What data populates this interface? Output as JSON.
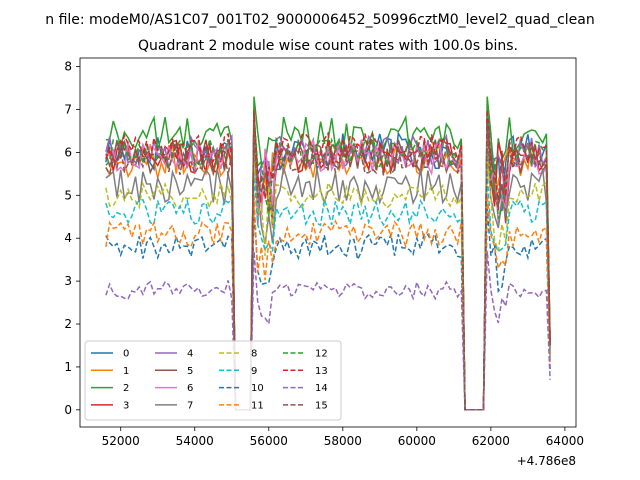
{
  "chart_data": {
    "type": "line",
    "suptitle": "n file: modeM0/AS1C07_001T02_9000006452_50996cztM0_level2_quad_clean",
    "title": "Quadrant 2 module wise count rates with 100.0s bins.",
    "xlabel": "",
    "ylabel": "",
    "x_offset_label": "+4.786e8",
    "x_range": [
      51600,
      63600
    ],
    "xlim": [
      50900,
      64300
    ],
    "ylim": [
      -0.4,
      8.2
    ],
    "xticks": [
      52000,
      54000,
      56000,
      58000,
      60000,
      62000,
      64000
    ],
    "xtick_labels": [
      "52000",
      "54000",
      "56000",
      "58000",
      "60000",
      "62000",
      "64000"
    ],
    "yticks": [
      0,
      1,
      2,
      3,
      4,
      5,
      6,
      7,
      8
    ],
    "ytick_labels": [
      "0",
      "1",
      "2",
      "3",
      "4",
      "5",
      "6",
      "7",
      "8"
    ],
    "bin_seconds": 100,
    "gaps": [
      [
        55000,
        55600
      ],
      [
        61200,
        61900
      ]
    ],
    "spikes_at": [
      55600,
      61900
    ],
    "legend": {
      "placement": "lower-left",
      "columns": 4
    },
    "series": [
      {
        "name": "0",
        "color": "#1f77b4",
        "style": "solid",
        "level": 6.0,
        "noise": 0.45
      },
      {
        "name": "1",
        "color": "#ff7f0e",
        "style": "solid",
        "level": 5.8,
        "noise": 0.4
      },
      {
        "name": "2",
        "color": "#2ca02c",
        "style": "solid",
        "level": 6.4,
        "noise": 0.45
      },
      {
        "name": "3",
        "color": "#d62728",
        "style": "solid",
        "level": 5.9,
        "noise": 0.4
      },
      {
        "name": "4",
        "color": "#9467bd",
        "style": "solid",
        "level": 6.0,
        "noise": 0.4
      },
      {
        "name": "5",
        "color": "#8c564b",
        "style": "solid",
        "level": 5.9,
        "noise": 0.4
      },
      {
        "name": "6",
        "color": "#e377c2",
        "style": "solid",
        "level": 5.9,
        "noise": 0.4
      },
      {
        "name": "7",
        "color": "#7f7f7f",
        "style": "solid",
        "level": 5.2,
        "noise": 0.45
      },
      {
        "name": "8",
        "color": "#bcbd22",
        "style": "dashed",
        "level": 5.0,
        "noise": 0.3
      },
      {
        "name": "9",
        "color": "#17becf",
        "style": "dashed",
        "level": 4.6,
        "noise": 0.3
      },
      {
        "name": "10",
        "color": "#1f77b4",
        "style": "dashed",
        "level": 3.8,
        "noise": 0.3
      },
      {
        "name": "11",
        "color": "#ff7f0e",
        "style": "dashed",
        "level": 4.1,
        "noise": 0.3
      },
      {
        "name": "12",
        "color": "#2ca02c",
        "style": "dashed",
        "level": 6.0,
        "noise": 0.35
      },
      {
        "name": "13",
        "color": "#d62728",
        "style": "dashed",
        "level": 6.1,
        "noise": 0.35
      },
      {
        "name": "14",
        "color": "#9467bd",
        "style": "dashed",
        "level": 2.8,
        "noise": 0.22
      },
      {
        "name": "15",
        "color": "#8c564b",
        "style": "dashed",
        "level": 5.8,
        "noise": 0.35
      }
    ]
  }
}
